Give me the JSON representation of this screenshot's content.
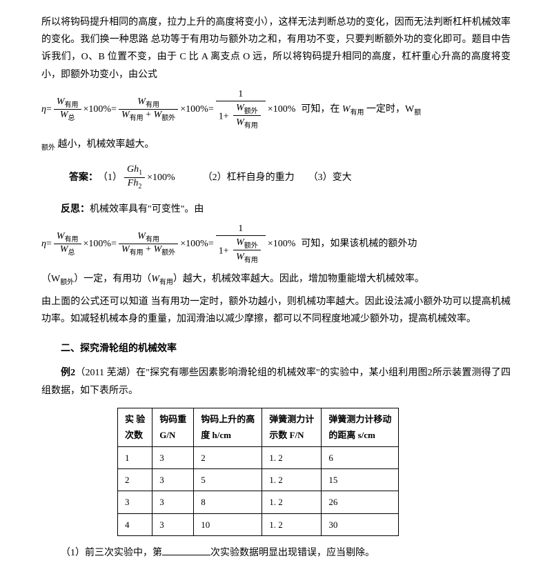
{
  "para1": "所以将钩码提升相同的高度，拉力上升的高度将变小），这样无法判断总功的变化，因而无法判断杠杆机械效率的变化。我们换一种思路 总功等于有用功与额外功之和，有用功不变，只要判断额外功的变化即可。题目中告诉我们，O、B 位置不变，由于 C 比 A 离支点 O 远，所以将钩码提升相同的高度，杠杆重心升高的高度将变小，即额外功变小，由公式",
  "formula_tail1a": "可知，在",
  "formula_tail1b": "一定时，W",
  "para2_pre": "额外",
  "para2": " 越小，机械效率越大。",
  "answer_label": "答案：",
  "answer1_label": "（1）",
  "answer2": "（2）杠杆自身的重力",
  "answer3": "（3）变大",
  "reflect_label": "反思：",
  "reflect_text": "机械效率具有\"可变性\"。由",
  "formula_tail2": "可知，如果该机械的额外功",
  "para3a": "（W",
  "para3b": "）一定，有用功（",
  "para3c": "）越大，机械效率越大。因此，增加物重能增大机械效率。",
  "para4": "由上面的公式还可以知道 当有用功一定时，额外功越小，则机械功率越大。因此设法减小额外功可以提高机械功率。如减轻机械本身的重量，加润滑油以减少摩擦，都可以不同程度地减少额外功，提高机械效率。",
  "section2_title": "二、探究滑轮组的机械效率",
  "example2_label": "例2",
  "example2_text": "（2011 芜湖）在\"探究有哪些因素影响滑轮组的机械效率\"的实验中，某小组利用图2所示装置测得了四组数据，如下表所示。",
  "table": {
    "columns": [
      "实 验\n次数",
      "钩码重\nG/N",
      "钩码上升的高\n度 h/cm",
      "弹簧测力计\n示数 F/N",
      "弹簧测力计移动\n的距离 s/cm"
    ],
    "rows": [
      [
        "1",
        "3",
        "2",
        "1. 2",
        "6"
      ],
      [
        "2",
        "3",
        "5",
        "1. 2",
        "15"
      ],
      [
        "3",
        "3",
        "8",
        "1. 2",
        "26"
      ],
      [
        "4",
        "3",
        "10",
        "1. 2",
        "30"
      ]
    ]
  },
  "q1_pre": "（1）前三次实验中，第",
  "q1_post": "次实验数据明显出现错误，应当剔除。",
  "sym": {
    "eta": "η",
    "eq": " = ",
    "x100": "×100%",
    "W": "W",
    "you": "有用",
    "zong": "总",
    "ewai": "额外",
    "one": "1",
    "plus": "1+",
    "Gh1": "Gh",
    "Fh2": "Fh",
    "s1": "1",
    "s2": "2"
  }
}
